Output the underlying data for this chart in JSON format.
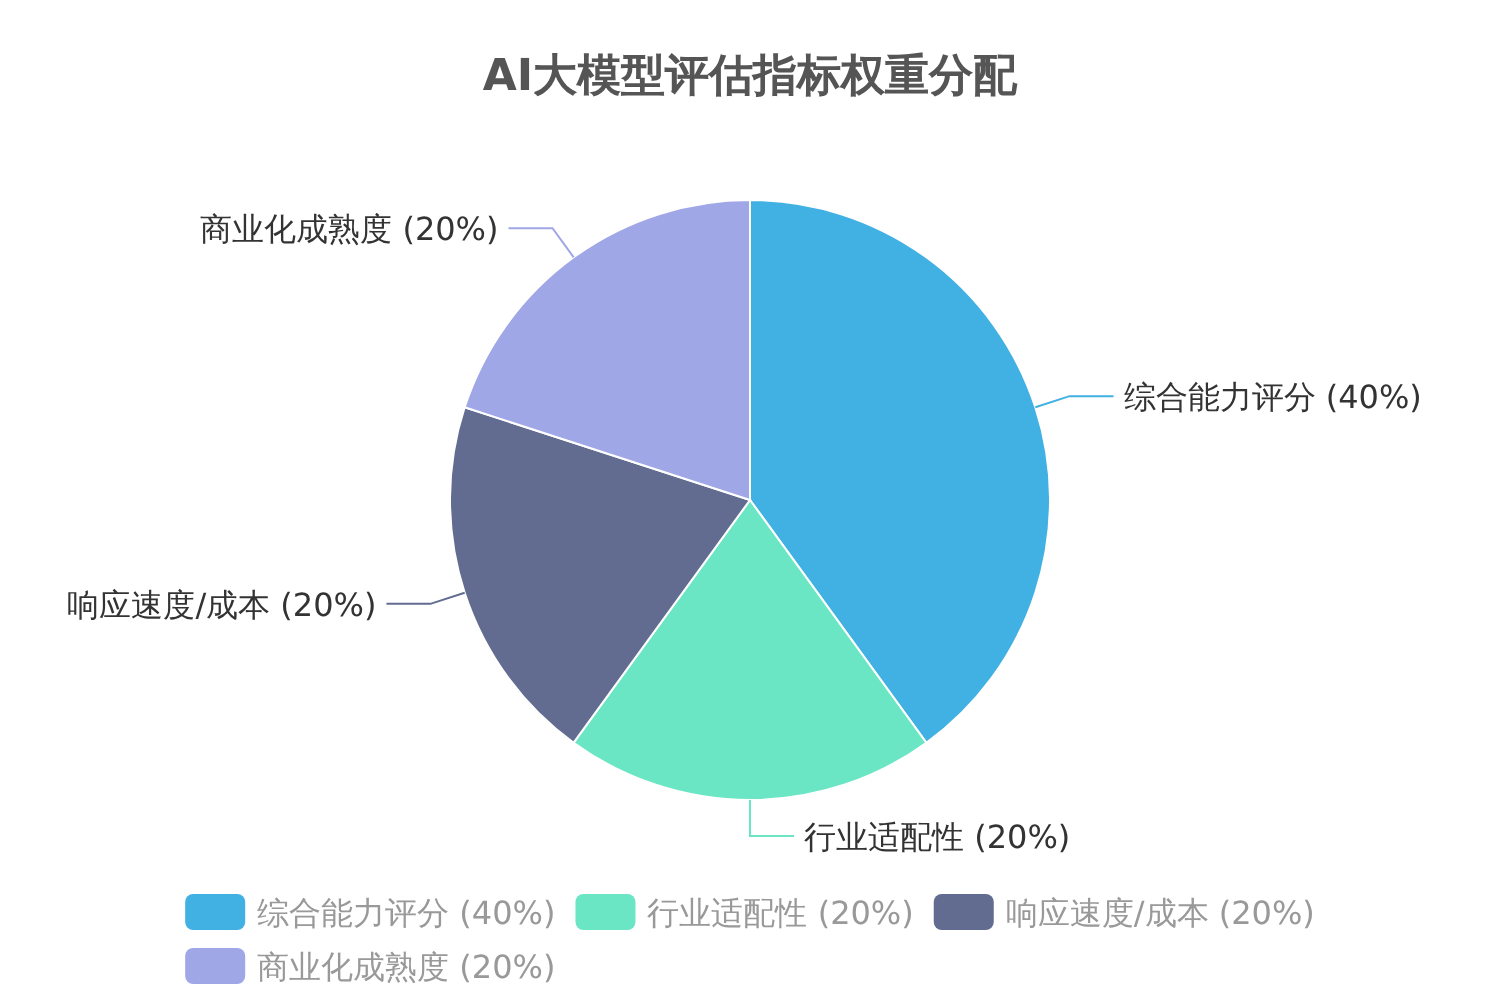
{
  "chart_data": {
    "type": "pie",
    "title": "AI大模型评估指标权重分配",
    "categories": [
      "综合能力评分 (40%)",
      "行业适配性 (20%)",
      "响应速度/成本 (20%)",
      "商业化成熟度 (20%)"
    ],
    "values": [
      40,
      20,
      20,
      20
    ],
    "colors": [
      "#41b0e3",
      "#6be6c4",
      "#626c91",
      "#a0a7e6"
    ],
    "legend": "bottom"
  }
}
